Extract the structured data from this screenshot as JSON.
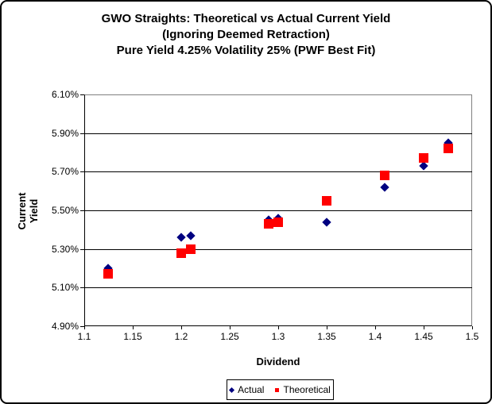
{
  "title": {
    "line1": "GWO Straights: Theoretical vs Actual Current Yield",
    "line2": "(Ignoring Deemed Retraction)",
    "line3": "Pure Yield 4.25% Volatility 25% (PWF Best Fit)"
  },
  "colors": {
    "actual": "#000080",
    "theoretical": "#FF0000",
    "gridline": "#000000",
    "plot_border": "#808080",
    "text": "#000000",
    "background": "#FFFFFF"
  },
  "chart_data": {
    "type": "scatter",
    "title": "GWO Straights: Theoretical vs Actual Current Yield (Ignoring Deemed Retraction) Pure Yield 4.25% Volatility 25% (PWF Best Fit)",
    "xlabel": "Dividend",
    "ylabel": "Current Yield",
    "xlim": [
      1.1,
      1.5
    ],
    "ylim": [
      4.9,
      6.1
    ],
    "grid": "horizontal",
    "legend_position": "bottom",
    "x_ticks": [
      {
        "value": 1.1,
        "label": "1.1"
      },
      {
        "value": 1.15,
        "label": "1.15"
      },
      {
        "value": 1.2,
        "label": "1.2"
      },
      {
        "value": 1.25,
        "label": "1.25"
      },
      {
        "value": 1.3,
        "label": "1.3"
      },
      {
        "value": 1.35,
        "label": "1.35"
      },
      {
        "value": 1.4,
        "label": "1.4"
      },
      {
        "value": 1.45,
        "label": "1.45"
      },
      {
        "value": 1.5,
        "label": "1.5"
      }
    ],
    "y_ticks": [
      {
        "value": 6.1,
        "label": "6.10%"
      },
      {
        "value": 5.9,
        "label": "5.90%"
      },
      {
        "value": 5.7,
        "label": "5.70%"
      },
      {
        "value": 5.5,
        "label": "5.50%"
      },
      {
        "value": 5.3,
        "label": "5.30%"
      },
      {
        "value": 5.1,
        "label": "5.10%"
      },
      {
        "value": 4.9,
        "label": "4.90%"
      }
    ],
    "series": [
      {
        "name": "Actual",
        "marker": "diamond",
        "color": "#000080",
        "points": [
          [
            1.125,
            5.2
          ],
          [
            1.2,
            5.36
          ],
          [
            1.21,
            5.37
          ],
          [
            1.29,
            5.45
          ],
          [
            1.3,
            5.46
          ],
          [
            1.35,
            5.44
          ],
          [
            1.41,
            5.62
          ],
          [
            1.45,
            5.73
          ],
          [
            1.475,
            5.85
          ]
        ]
      },
      {
        "name": "Theoretical",
        "marker": "square",
        "color": "#FF0000",
        "points": [
          [
            1.125,
            5.17
          ],
          [
            1.2,
            5.28
          ],
          [
            1.21,
            5.3
          ],
          [
            1.29,
            5.43
          ],
          [
            1.3,
            5.44
          ],
          [
            1.35,
            5.55
          ],
          [
            1.41,
            5.68
          ],
          [
            1.45,
            5.77
          ],
          [
            1.475,
            5.82
          ]
        ]
      }
    ]
  }
}
